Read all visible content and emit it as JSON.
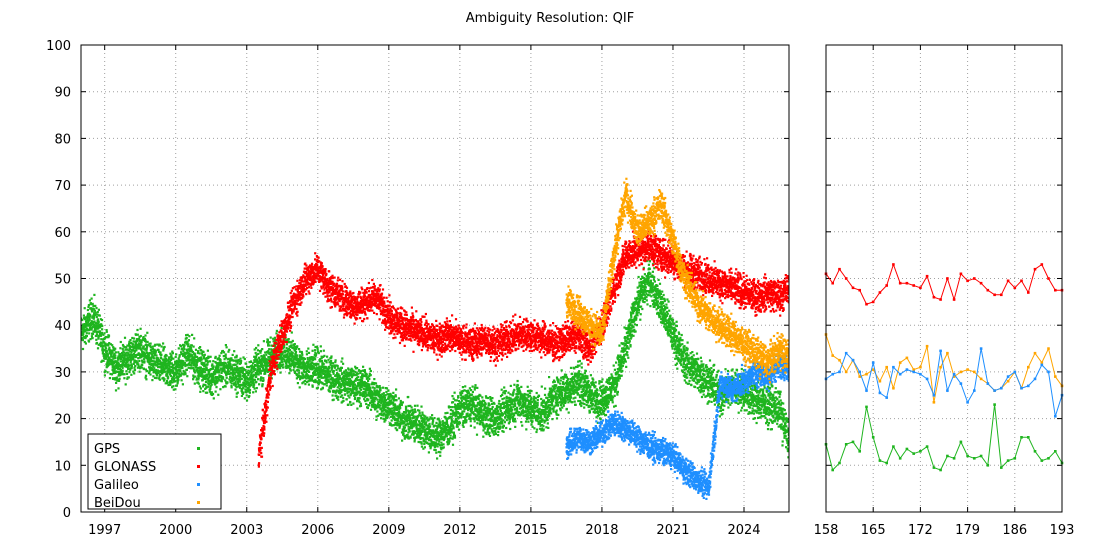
{
  "chart_data": {
    "type": "scatter",
    "title": "Ambiguity Resolution: QIF",
    "xlabel": "",
    "ylabel": "",
    "ylim": [
      0,
      100
    ],
    "yticks": [
      0,
      10,
      20,
      30,
      40,
      50,
      60,
      70,
      80,
      90,
      100
    ],
    "grid": true,
    "legend_position": "bottom-left",
    "colors": {
      "GPS": "#1fb51f",
      "GLONASS": "#ff0000",
      "Galileo": "#1f8fff",
      "BeiDou": "#ffa500"
    },
    "legend": [
      "GPS",
      "GLONASS",
      "Galileo",
      "BeiDou"
    ],
    "panels": [
      {
        "name": "long-term",
        "type": "scatter",
        "x_unit": "year",
        "xlim": [
          1996.0,
          2025.9
        ],
        "xticks": [
          1997,
          2000,
          2003,
          2006,
          2009,
          2012,
          2015,
          2018,
          2021,
          2024
        ],
        "series": [
          {
            "name": "GPS",
            "x": [
              1996.0,
              1996.5,
              1997.0,
              1997.5,
              1998.0,
              1998.5,
              1999.0,
              1999.5,
              2000.0,
              2000.5,
              2001.0,
              2001.5,
              2002.0,
              2002.5,
              2003.0,
              2003.5,
              2004.0,
              2004.5,
              2005.0,
              2005.5,
              2006.0,
              2006.5,
              2007.0,
              2007.5,
              2008.0,
              2008.5,
              2009.0,
              2009.5,
              2010.0,
              2010.5,
              2011.0,
              2011.5,
              2012.0,
              2012.5,
              2013.0,
              2013.5,
              2014.0,
              2014.5,
              2015.0,
              2015.5,
              2016.0,
              2016.5,
              2017.0,
              2017.5,
              2018.0,
              2018.5,
              2019.0,
              2019.5,
              2020.0,
              2020.5,
              2021.0,
              2021.5,
              2022.0,
              2022.5,
              2023.0,
              2023.5,
              2024.0,
              2024.5,
              2025.0,
              2025.5,
              2025.9
            ],
            "y": [
              38,
              42,
              35,
              31,
              33,
              35,
              32,
              31,
              30,
              34,
              31,
              29,
              31,
              30,
              28,
              31,
              33,
              35,
              33,
              30,
              31,
              29,
              28,
              27,
              27,
              24,
              23,
              20,
              19,
              18,
              16,
              18,
              22,
              23,
              21,
              20,
              22,
              24,
              22,
              21,
              25,
              26,
              28,
              25,
              24,
              27,
              35,
              45,
              50,
              44,
              38,
              32,
              30,
              28,
              25,
              27,
              26,
              24,
              23,
              22,
              15
            ],
            "spread": 6
          },
          {
            "name": "GLONASS",
            "x": [
              2003.5,
              2003.8,
              2004.0,
              2004.5,
              2005.0,
              2005.5,
              2006.0,
              2006.5,
              2007.0,
              2007.5,
              2008.0,
              2008.5,
              2009.0,
              2009.5,
              2010.0,
              2010.5,
              2011.0,
              2011.5,
              2012.0,
              2012.5,
              2013.0,
              2013.5,
              2014.0,
              2014.5,
              2015.0,
              2015.5,
              2016.0,
              2016.5,
              2017.0,
              2017.5,
              2018.0,
              2018.5,
              2019.0,
              2019.5,
              2020.0,
              2020.5,
              2021.0,
              2021.5,
              2022.0,
              2022.5,
              2023.0,
              2023.5,
              2024.0,
              2024.5,
              2025.0,
              2025.5,
              2025.9
            ],
            "y": [
              12,
              22,
              30,
              38,
              45,
              50,
              52,
              48,
              46,
              44,
              45,
              46,
              42,
              40,
              39,
              38,
              37,
              38,
              37,
              36,
              37,
              36,
              37,
              38,
              38,
              37,
              36,
              37,
              38,
              35,
              40,
              48,
              55,
              56,
              57,
              55,
              54,
              52,
              51,
              50,
              49,
              48,
              47,
              46,
              47,
              46,
              48
            ],
            "spread": 5
          },
          {
            "name": "Galileo",
            "x": [
              2016.5,
              2017.0,
              2017.5,
              2018.0,
              2018.5,
              2019.0,
              2019.5,
              2020.0,
              2020.5,
              2021.0,
              2021.5,
              2022.0,
              2022.5,
              2023.0,
              2023.5,
              2024.0,
              2024.5,
              2025.0,
              2025.5,
              2025.9
            ],
            "y": [
              14,
              16,
              15,
              17,
              19,
              18,
              16,
              14,
              13,
              12,
              9,
              7,
              5,
              28,
              26,
              28,
              30,
              29,
              32,
              30
            ],
            "spread": 4
          },
          {
            "name": "BeiDou",
            "x": [
              2016.5,
              2017.0,
              2017.5,
              2018.0,
              2018.5,
              2019.0,
              2019.5,
              2020.0,
              2020.5,
              2021.0,
              2021.5,
              2022.0,
              2022.5,
              2023.0,
              2023.5,
              2024.0,
              2024.5,
              2025.0,
              2025.5,
              2025.9
            ],
            "y": [
              45,
              43,
              40,
              38,
              55,
              68,
              60,
              62,
              66,
              58,
              50,
              45,
              42,
              40,
              38,
              36,
              34,
              32,
              35,
              33
            ],
            "spread": 5
          }
        ]
      },
      {
        "name": "recent-days",
        "type": "line",
        "x_unit": "day-of-year",
        "xlim": [
          158,
          193
        ],
        "xticks": [
          158,
          165,
          172,
          179,
          186,
          193
        ],
        "series": [
          {
            "name": "GLONASS",
            "x": [
              158,
              159,
              160,
              161,
              162,
              163,
              164,
              165,
              166,
              167,
              168,
              169,
              170,
              171,
              172,
              173,
              174,
              175,
              176,
              177,
              178,
              179,
              180,
              181,
              182,
              183,
              184,
              185,
              186,
              187,
              188,
              189,
              190,
              191,
              192,
              193
            ],
            "y": [
              51,
              49,
              52,
              50,
              48,
              47.5,
              44.5,
              45,
              47,
              48.5,
              53,
              49,
              49,
              48.5,
              48,
              50.5,
              46,
              45.5,
              50,
              45.5,
              51,
              49.5,
              50,
              49,
              47.5,
              46.5,
              46.5,
              49.5,
              48,
              49.5,
              47,
              52,
              53,
              50,
              47.5,
              47.5
            ]
          },
          {
            "name": "BeiDou",
            "x": [
              158,
              159,
              160,
              161,
              162,
              163,
              164,
              165,
              166,
              167,
              168,
              169,
              170,
              171,
              172,
              173,
              174,
              175,
              176,
              177,
              178,
              179,
              180,
              181,
              182,
              183,
              184,
              185,
              186,
              187,
              188,
              189,
              190,
              191,
              192,
              193
            ],
            "y": [
              38,
              33.5,
              32.5,
              30,
              32.5,
              29,
              29.5,
              30.5,
              28,
              31,
              26.5,
              32,
              33,
              30.5,
              31,
              35.5,
              23.5,
              31,
              34,
              29,
              30,
              30.5,
              30,
              28.5,
              27.5,
              26,
              26.5,
              28,
              30,
              26.5,
              31,
              34,
              32,
              35,
              29,
              27
            ]
          },
          {
            "name": "Galileo",
            "x": [
              158,
              159,
              160,
              161,
              162,
              163,
              164,
              165,
              166,
              167,
              168,
              169,
              170,
              171,
              172,
              173,
              174,
              175,
              176,
              177,
              178,
              179,
              180,
              181,
              182,
              183,
              184,
              185,
              186,
              187,
              188,
              189,
              190,
              191,
              192,
              193
            ],
            "y": [
              28.5,
              29.5,
              30,
              34,
              32.5,
              30,
              26,
              32,
              25.5,
              24.5,
              31,
              29.5,
              30.5,
              30,
              29.5,
              28.5,
              25,
              34.5,
              26,
              29.5,
              27.5,
              23.5,
              26,
              35,
              27.5,
              26,
              26.5,
              29,
              30,
              26.5,
              27,
              28.5,
              31.5,
              30,
              20.5,
              25
            ]
          },
          {
            "name": "GPS",
            "x": [
              158,
              159,
              160,
              161,
              162,
              163,
              164,
              165,
              166,
              167,
              168,
              169,
              170,
              171,
              172,
              173,
              174,
              175,
              176,
              177,
              178,
              179,
              180,
              181,
              182,
              183,
              184,
              185,
              186,
              187,
              188,
              189,
              190,
              191,
              192,
              193
            ],
            "y": [
              14.5,
              9,
              10.5,
              14.5,
              15,
              13,
              22.5,
              16,
              11,
              10.5,
              14,
              11.5,
              13.5,
              12.5,
              13,
              14,
              9.5,
              9,
              12,
              11.5,
              15,
              12,
              11.5,
              12,
              10,
              23,
              9.5,
              11,
              11.5,
              16,
              16,
              13,
              11,
              11.5,
              13,
              10.5
            ]
          }
        ]
      }
    ]
  }
}
